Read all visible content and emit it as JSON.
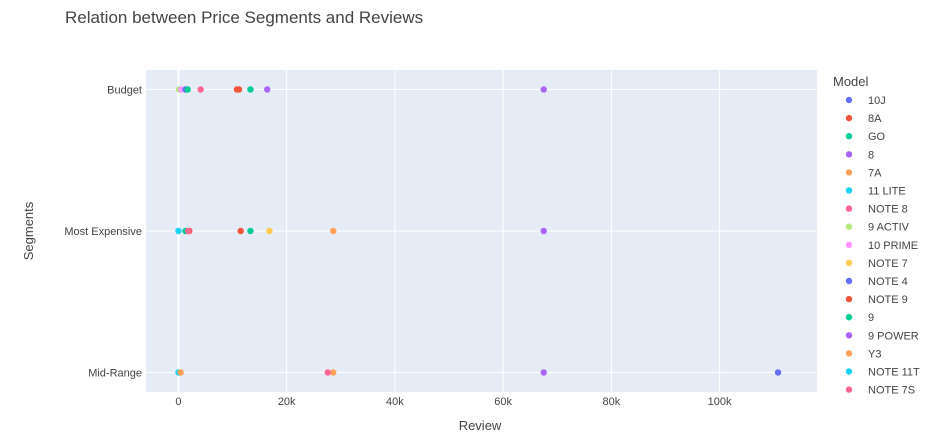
{
  "chart_data": {
    "type": "scatter",
    "title": "Relation between Price Segments and Reviews",
    "xlabel": "Review",
    "ylabel": "Segments",
    "categories": [
      "Mid-Range",
      "Most Expensive",
      "Budget"
    ],
    "xlim": [
      -6000,
      118000
    ],
    "x_ticks": [
      0,
      20000,
      40000,
      60000,
      80000,
      100000
    ],
    "x_tick_labels": [
      "0",
      "20k",
      "40k",
      "60k",
      "80k",
      "100k"
    ],
    "grid": true,
    "legend_title": "Model",
    "legend_position": "right",
    "series": [
      {
        "name": "10J",
        "color": "#636efa",
        "points": [
          {
            "x": 110800,
            "y": "Mid-Range"
          }
        ]
      },
      {
        "name": "8A",
        "color": "#ef553b",
        "points": [
          {
            "x": 10800,
            "y": "Budget"
          },
          {
            "x": 11500,
            "y": "Most Expensive"
          }
        ]
      },
      {
        "name": "GO",
        "color": "#00cc96",
        "points": [
          {
            "x": 13300,
            "y": "Budget"
          },
          {
            "x": 13300,
            "y": "Most Expensive"
          }
        ]
      },
      {
        "name": "8",
        "color": "#ab63fa",
        "points": [
          {
            "x": 16400,
            "y": "Budget"
          },
          {
            "x": 67500,
            "y": "Budget"
          },
          {
            "x": 67500,
            "y": "Most Expensive"
          },
          {
            "x": 67500,
            "y": "Mid-Range"
          }
        ]
      },
      {
        "name": "7A",
        "color": "#ffa15a",
        "points": [
          {
            "x": 28600,
            "y": "Most Expensive"
          },
          {
            "x": 28600,
            "y": "Mid-Range"
          }
        ]
      },
      {
        "name": "11 LITE",
        "color": "#19d3f3",
        "points": [
          {
            "x": 0,
            "y": "Most Expensive"
          },
          {
            "x": 0,
            "y": "Mid-Range"
          }
        ]
      },
      {
        "name": "NOTE 8",
        "color": "#ff6692",
        "points": [
          {
            "x": 4100,
            "y": "Budget"
          },
          {
            "x": 27600,
            "y": "Mid-Range"
          }
        ]
      },
      {
        "name": "9 ACTIV",
        "color": "#b6e880",
        "points": [
          {
            "x": 100,
            "y": "Budget"
          }
        ]
      },
      {
        "name": "10 PRIME",
        "color": "#ff97ff",
        "points": [
          {
            "x": 500,
            "y": "Budget"
          }
        ]
      },
      {
        "name": "NOTE 7",
        "color": "#fecb52",
        "points": [
          {
            "x": 16800,
            "y": "Most Expensive"
          }
        ]
      },
      {
        "name": "NOTE 4",
        "color": "#636efa",
        "points": [
          {
            "x": 1300,
            "y": "Budget"
          }
        ]
      },
      {
        "name": "NOTE 9",
        "color": "#ef553b",
        "points": [
          {
            "x": 11200,
            "y": "Budget"
          },
          {
            "x": 2000,
            "y": "Most Expensive"
          }
        ]
      },
      {
        "name": "9",
        "color": "#00cc96",
        "points": [
          {
            "x": 1700,
            "y": "Budget"
          },
          {
            "x": 1300,
            "y": "Most Expensive"
          }
        ]
      },
      {
        "name": "9 POWER",
        "color": "#ab63fa",
        "points": []
      },
      {
        "name": "Y3",
        "color": "#ffa15a",
        "points": [
          {
            "x": 400,
            "y": "Mid-Range"
          }
        ]
      },
      {
        "name": "NOTE 11T",
        "color": "#19d3f3",
        "points": []
      },
      {
        "name": "NOTE 7S",
        "color": "#ff6692",
        "points": [
          {
            "x": 1800,
            "y": "Most Expensive"
          }
        ]
      }
    ]
  }
}
